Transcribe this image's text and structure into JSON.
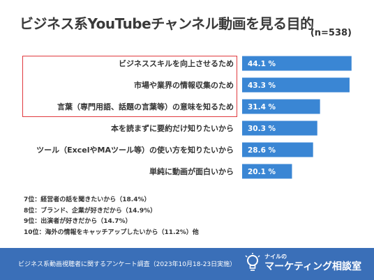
{
  "title": "ビジネス系YouTubeチャンネル動画を見る目的",
  "sample_size": "(n=538)",
  "chart_data": {
    "type": "bar",
    "orientation": "horizontal",
    "categories": [
      "ビジネススキルを向上させるため",
      "市場や業界の情報収集のため",
      "言葉（専門用語、話題の言葉等）の意味を知るため",
      "本を読まずに要約だけ知りたいから",
      "ツール（ExcelやMAツール等）の使い方を知りたいから",
      "単純に動画が面白いから"
    ],
    "values": [
      44.1,
      43.3,
      31.4,
      30.3,
      28.6,
      20.1
    ],
    "value_labels": [
      "44.1 %",
      "43.3 %",
      "31.4 %",
      "30.3 %",
      "28.6 %",
      "20.1 %"
    ],
    "highlighted_count": 3,
    "bar_color": "#3a86d4",
    "highlight_color": "#e0393e",
    "xlim": [
      0,
      45
    ]
  },
  "others": [
    "7位：経営者の話を聞きたいから（18.4%）",
    "8位：ブランド、企業が好きだから（14.9%）",
    "9位：出演者が好きだから（14.7%）",
    "10位：海外の情報をキャッチアップしたいから（11.2%）他"
  ],
  "footer": {
    "source": "ビジネス系動画視聴者に関するアンケート調査（2023年10月18-23日実施）",
    "logo_small": "ナイルの",
    "logo_big": "マーケティング相談室",
    "footer_color": "#3a6fb8"
  }
}
